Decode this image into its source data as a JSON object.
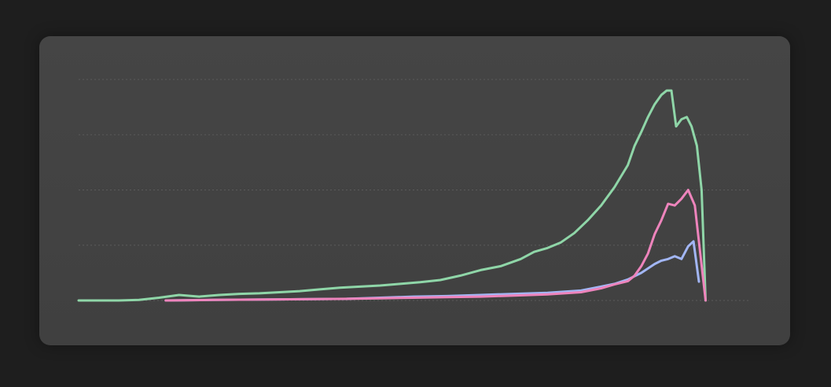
{
  "chart_data": {
    "type": "line",
    "title": "",
    "xlabel": "",
    "ylabel": "",
    "grid": true,
    "ylim": [
      0,
      4
    ],
    "xlim": [
      0,
      100
    ],
    "series": [
      {
        "color": "#8fd6a8",
        "x": [
          0,
          3,
          6,
          9,
          12,
          15,
          18,
          21,
          24,
          27,
          30,
          33,
          36,
          39,
          42,
          45,
          48,
          51,
          54,
          57,
          60,
          63,
          66,
          68,
          70,
          72,
          74,
          76,
          78,
          80,
          82,
          83,
          84,
          85,
          86,
          87,
          87.8,
          88.5,
          89.2,
          90,
          90.8,
          91.5,
          92.3,
          93,
          93.6
        ],
        "values": [
          0,
          0,
          0,
          0.01,
          0.05,
          0.1,
          0.07,
          0.1,
          0.12,
          0.13,
          0.15,
          0.17,
          0.2,
          0.23,
          0.25,
          0.27,
          0.3,
          0.33,
          0.37,
          0.45,
          0.55,
          0.62,
          0.75,
          0.88,
          0.95,
          1.05,
          1.22,
          1.45,
          1.72,
          2.05,
          2.45,
          2.8,
          3.05,
          3.32,
          3.55,
          3.72,
          3.8,
          3.8,
          3.15,
          3.28,
          3.32,
          3.15,
          2.8,
          2.0,
          0
        ]
      },
      {
        "color": "#a2b6f5",
        "x": [
          13,
          20,
          30,
          40,
          45,
          50,
          55,
          60,
          65,
          70,
          75,
          78,
          80,
          82,
          84,
          85,
          86,
          87,
          88,
          89,
          90,
          91,
          91.8,
          92.6
        ],
        "values": [
          0,
          0.01,
          0.02,
          0.03,
          0.05,
          0.07,
          0.08,
          0.1,
          0.12,
          0.14,
          0.18,
          0.25,
          0.3,
          0.38,
          0.5,
          0.58,
          0.66,
          0.72,
          0.75,
          0.8,
          0.75,
          0.98,
          1.07,
          0.34
        ]
      },
      {
        "color": "#ee84bc",
        "x": [
          13,
          20,
          30,
          40,
          45,
          50,
          55,
          60,
          65,
          70,
          75,
          78,
          80,
          82,
          83,
          84,
          85,
          86,
          87,
          88,
          89,
          90,
          91,
          92,
          93.6
        ],
        "values": [
          0,
          0.01,
          0.02,
          0.03,
          0.04,
          0.05,
          0.06,
          0.07,
          0.09,
          0.11,
          0.15,
          0.22,
          0.29,
          0.35,
          0.45,
          0.62,
          0.85,
          1.2,
          1.45,
          1.75,
          1.72,
          1.84,
          2.0,
          1.72,
          0
        ]
      }
    ]
  }
}
